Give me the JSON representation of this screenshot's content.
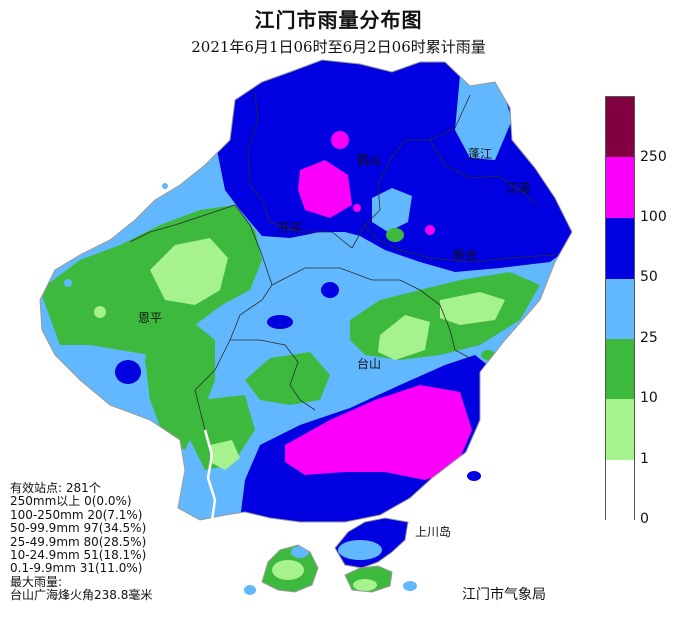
{
  "title": "江门市雨量分布图",
  "subtitle": "2021年6月1日06时至6月2日06时累计雨量",
  "place_labels": {
    "heshan": "鹤山",
    "pengjiang": "蓬江",
    "jianghai": "江海",
    "kaiping": "开平",
    "xinhui": "新会",
    "enping": "恩平",
    "taishan": "台山",
    "shangchuan": "上川岛"
  },
  "legend": {
    "colors": [
      "#ffffff",
      "#a6f28f",
      "#3dba3d",
      "#61b8ff",
      "#0000e1",
      "#fa00fa",
      "#800040"
    ],
    "ticks": [
      "0",
      "1",
      "10",
      "25",
      "50",
      "100",
      "250"
    ]
  },
  "stats": {
    "lines": [
      "有效站点: 281个",
      "250mm以上 0(0.0%)",
      "100-250mm 20(7.1%)",
      "50-99.9mm 97(34.5%)",
      "25-49.9mm 80(28.5%)",
      "10-24.9mm 51(18.1%)",
      "0.1-9.9mm 31(11.0%)",
      "最大雨量:",
      "台山广海烽火角238.8毫米"
    ]
  },
  "bureau": "江门市气象局"
}
